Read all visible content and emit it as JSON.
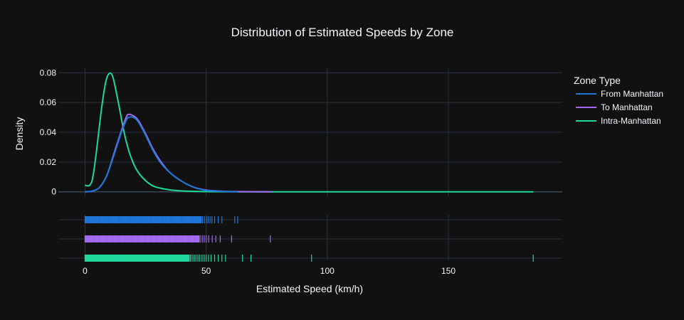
{
  "chart_data": {
    "type": "line",
    "title": "Distribution of Estimated Speeds by Zone",
    "xlabel": "Estimated Speed (km/h)",
    "ylabel": "Density",
    "xlim": [
      -11,
      197
    ],
    "ylim": [
      -0.003,
      0.083
    ],
    "xticks": [
      0,
      50,
      100,
      150
    ],
    "yticks": [
      0,
      0.02,
      0.04,
      0.06,
      0.08
    ],
    "ytick_labels": [
      "0",
      "0.02",
      "0.04",
      "0.06",
      "0.08"
    ],
    "grid": true,
    "legend": {
      "title": "Zone Type",
      "placement": "right"
    },
    "series": [
      {
        "name": "From Manhattan",
        "color": "#1f77d8",
        "x": [
          0,
          3,
          6,
          9,
          12,
          15,
          17,
          18,
          20,
          22,
          25,
          28,
          31,
          35,
          40,
          45,
          50,
          55,
          60,
          63
        ],
        "y": [
          0,
          0.0005,
          0.003,
          0.011,
          0.025,
          0.04,
          0.048,
          0.05,
          0.05,
          0.047,
          0.038,
          0.028,
          0.02,
          0.013,
          0.007,
          0.003,
          0.001,
          0.0004,
          0.0001,
          0
        ]
      },
      {
        "name": "To Manhattan",
        "color": "#a36bf5",
        "x": [
          0,
          3,
          6,
          9,
          12,
          15,
          17,
          18,
          20,
          22,
          25,
          28,
          31,
          35,
          40,
          45,
          50,
          55,
          60,
          65,
          70,
          77
        ],
        "y": [
          0,
          0.0004,
          0.003,
          0.011,
          0.026,
          0.041,
          0.05,
          0.052,
          0.051,
          0.048,
          0.039,
          0.029,
          0.021,
          0.013,
          0.007,
          0.003,
          0.0012,
          0.0005,
          0.0002,
          0.0001,
          5e-05,
          0
        ]
      },
      {
        "name": "Intra-Manhattan",
        "color": "#1fd89c",
        "x": [
          0,
          1,
          2,
          3,
          4,
          5,
          6,
          7,
          8,
          9,
          10,
          11,
          12,
          14,
          16,
          18,
          20,
          22,
          25,
          28,
          31,
          35,
          40,
          45,
          50,
          55,
          60,
          70,
          80,
          100,
          120,
          150,
          185
        ],
        "y": [
          0.0045,
          0.004,
          0.0045,
          0.008,
          0.018,
          0.031,
          0.045,
          0.058,
          0.069,
          0.0765,
          0.0795,
          0.079,
          0.074,
          0.058,
          0.041,
          0.028,
          0.019,
          0.013,
          0.0075,
          0.004,
          0.0025,
          0.0013,
          0.0006,
          0.0003,
          0.0001,
          5e-05,
          2e-05,
          1e-05,
          0,
          0,
          0,
          0,
          0
        ]
      }
    ],
    "rug": [
      {
        "name": "From Manhattan",
        "dense_range": [
          0,
          48
        ],
        "dense_count": 170,
        "values": [
          48.5,
          49.3,
          50.1,
          50.8,
          51.6,
          52.4,
          53.5,
          55,
          56.5,
          61.8,
          63
        ]
      },
      {
        "name": "To Manhattan",
        "dense_range": [
          0,
          47
        ],
        "dense_count": 170,
        "values": [
          0.5,
          3.5,
          47.5,
          48.4,
          49.2,
          50,
          51,
          52.5,
          54,
          55.8,
          60.5,
          76.5
        ]
      },
      {
        "name": "Intra-Manhattan",
        "dense_range": [
          0,
          43
        ],
        "dense_count": 190,
        "values": [
          43.5,
          44.2,
          45,
          45.8,
          46.6,
          47.4,
          48.3,
          49.2,
          50,
          51,
          52,
          53.5,
          55,
          56.5,
          58,
          65,
          68.5,
          93.5,
          185
        ]
      }
    ]
  }
}
